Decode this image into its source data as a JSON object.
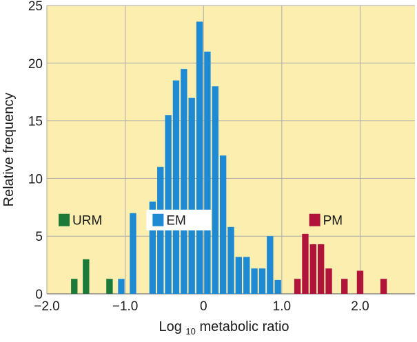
{
  "chart_data": {
    "type": "bar",
    "xlabel": "Log10 metabolic ratio",
    "xlabel_parts": {
      "prefix": "Log",
      "subscript": "10",
      "suffix": " metabolic ratio"
    },
    "ylabel": "Relative frequency",
    "xlim": [
      -2.0,
      2.7
    ],
    "ylim": [
      0,
      25
    ],
    "xticks": [
      -2.0,
      -1.0,
      0,
      1.0,
      2.0
    ],
    "xtick_labels": [
      "−2.0",
      "−1.0",
      "0",
      "1.0",
      "2.0"
    ],
    "yticks": [
      0,
      5,
      10,
      15,
      20,
      25
    ],
    "ytick_labels": [
      "0",
      "5",
      "10",
      "15",
      "20",
      "25"
    ],
    "grid": true,
    "background_color": "#fbeeae",
    "grid_color": "#aaaaaa",
    "bin_width": 0.1,
    "series": [
      {
        "name": "URM",
        "color": "#1b7a3a",
        "x": [
          -1.65,
          -1.5,
          -1.2
        ],
        "values": [
          1.3,
          3.0,
          1.3
        ]
      },
      {
        "name": "EM",
        "color": "#1f8ad4",
        "x": [
          -1.05,
          -0.9,
          -0.65,
          -0.55,
          -0.45,
          -0.35,
          -0.25,
          -0.15,
          -0.05,
          0.05,
          0.15,
          0.25,
          0.35,
          0.45,
          0.55,
          0.65,
          0.75,
          0.85,
          0.95,
          1.05
        ],
        "values": [
          1.3,
          7.0,
          8.0,
          11.0,
          15.5,
          18.5,
          19.5,
          17.0,
          23.6,
          21.0,
          18.0,
          12.0,
          5.8,
          3.2,
          3.2,
          2.2,
          2.2,
          5.0,
          1.2,
          0.0
        ]
      },
      {
        "name": "PM",
        "color": "#b0143b",
        "x": [
          1.2,
          1.3,
          1.4,
          1.5,
          1.6,
          1.8,
          2.0,
          2.3
        ],
        "values": [
          1.3,
          5.2,
          4.3,
          4.3,
          2.2,
          1.3,
          2.0,
          1.3
        ]
      }
    ],
    "legend": [
      {
        "name": "URM",
        "color": "#1b7a3a"
      },
      {
        "name": "EM",
        "color": "#1f8ad4"
      },
      {
        "name": "PM",
        "color": "#b0143b"
      }
    ]
  }
}
